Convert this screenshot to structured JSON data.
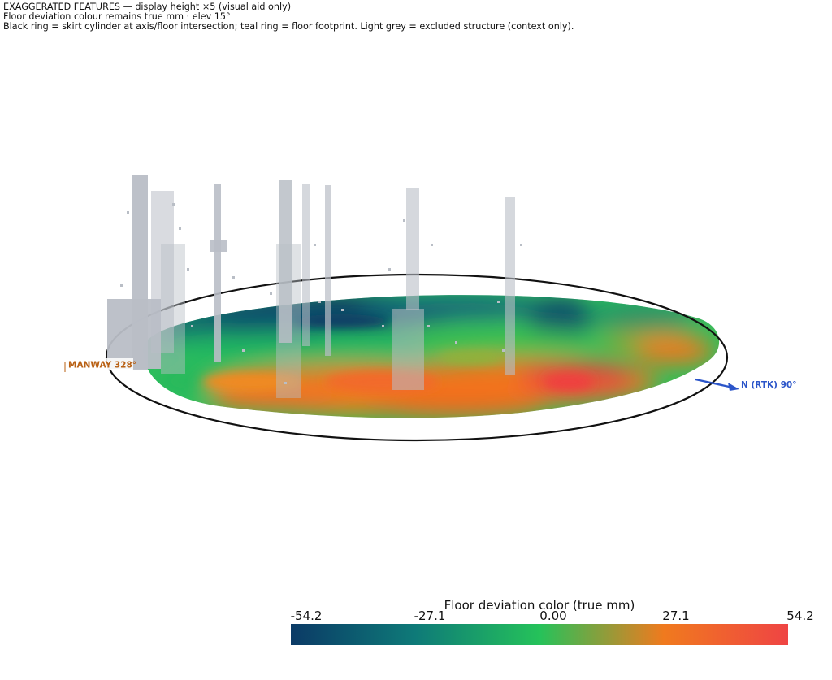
{
  "header": {
    "line1": "EXAGGERATED FEATURES — display height ×5 (visual aid only)",
    "line2": "Floor deviation colour remains true mm · elev 15°",
    "line3": "Black ring = skirt cylinder at axis/floor intersection; teal ring = floor footprint. Light grey = excluded structure (context only)."
  },
  "markers": {
    "manway": "MANWAY 328°",
    "north": "N (RTK) 90°"
  },
  "colorbar": {
    "title": "Floor deviation color (true mm)",
    "ticks": [
      "-54.2",
      "-27.1",
      "0.00",
      "27.1",
      "54.2"
    ],
    "range": [
      -54.2,
      54.2
    ],
    "colors": {
      "low": "#0b3a66",
      "low_mid": "#0e7a78",
      "mid": "#25c25a",
      "high_mid": "#f07a1e",
      "high": "#ef4444"
    }
  },
  "colors": {
    "ring": "#111111",
    "excluded_structure": "#b9bec6",
    "manway_label": "#b85f12",
    "north_arrow": "#2b55c9"
  }
}
